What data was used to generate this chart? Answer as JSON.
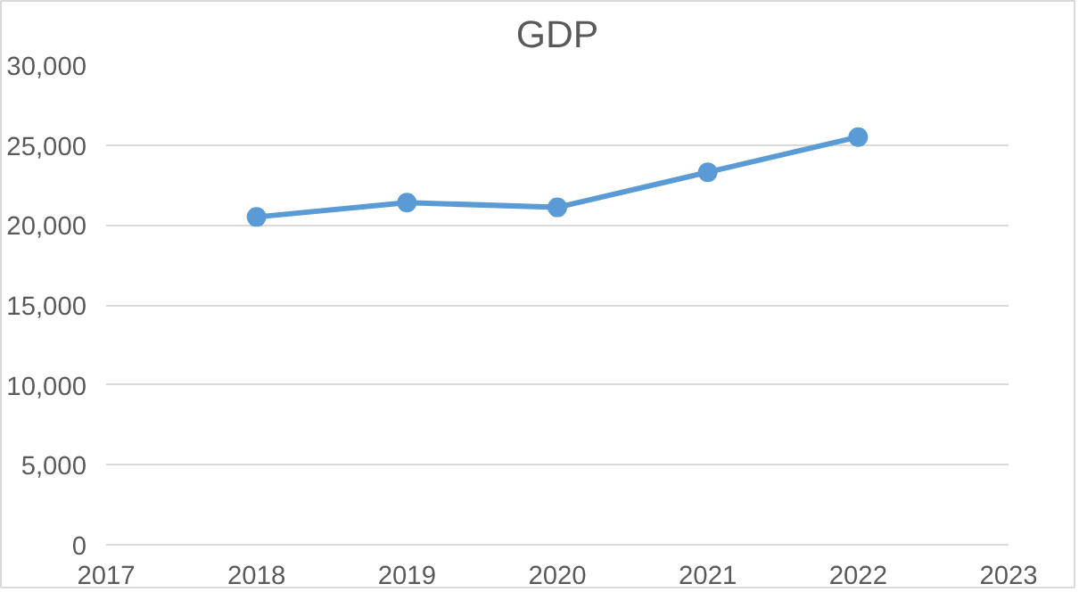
{
  "chart_data": {
    "type": "line",
    "title": "GDP",
    "x": [
      2018,
      2019,
      2020,
      2021,
      2022
    ],
    "series": [
      {
        "color": "#5b9bd5",
        "values": [
          20500,
          21400,
          21100,
          23300,
          25500
        ]
      }
    ],
    "xlim": [
      2017,
      2023
    ],
    "xticks": [
      2017,
      2018,
      2019,
      2020,
      2021,
      2022,
      2023
    ],
    "ylim": [
      0,
      30000
    ],
    "yticks": [
      {
        "value": 0,
        "label": "0"
      },
      {
        "value": 5000,
        "label": "5,000"
      },
      {
        "value": 10000,
        "label": "10,000"
      },
      {
        "value": 15000,
        "label": "15,000"
      },
      {
        "value": 20000,
        "label": "20,000"
      },
      {
        "value": 25000,
        "label": "25,000"
      },
      {
        "value": 30000,
        "label": "30,000"
      }
    ],
    "grid": "y",
    "marker": "circle",
    "line_style": "solid"
  }
}
